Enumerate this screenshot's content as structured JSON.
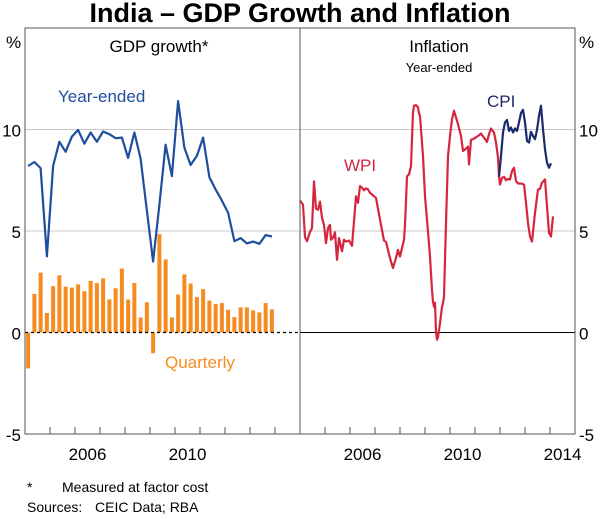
{
  "chart_data": {
    "type": "line",
    "title": "India – GDP Growth and Inflation",
    "unit_left": "%",
    "unit_right": "%",
    "ylim": [
      -5,
      15
    ],
    "yticks": [
      -5,
      0,
      5,
      10
    ],
    "ytick_labels": [
      "-5",
      "0",
      "5",
      "10"
    ],
    "xlim": [
      2004,
      2015
    ],
    "grid": true,
    "panels": [
      {
        "title": "GDP growth*",
        "subtitle": "",
        "xtick_labels": [
          {
            "year": 2006,
            "label": "2006"
          },
          {
            "year": 2010,
            "label": "2010"
          }
        ],
        "series": [
          {
            "name": "Year-ended",
            "type": "line",
            "color": "#1f4e9e",
            "label": "Year-ended",
            "frequency": "quarterly",
            "start": "2004Q1",
            "values": [
              8.2,
              8.4,
              8.1,
              3.75,
              8.2,
              9.4,
              8.9,
              9.65,
              9.98,
              9.3,
              9.85,
              9.4,
              9.9,
              9.77,
              9.57,
              9.6,
              8.6,
              9.85,
              8.56,
              6.0,
              3.5,
              6.3,
              9.25,
              7.7,
              11.4,
              9.1,
              8.25,
              8.7,
              9.6,
              7.65,
              7.05,
              6.5,
              5.9,
              4.5,
              4.65,
              4.39,
              4.48,
              4.37,
              4.8,
              4.73
            ]
          },
          {
            "name": "Quarterly",
            "type": "bar",
            "color": "#f68b1f",
            "label": "Quarterly",
            "frequency": "quarterly",
            "start": "2004Q1",
            "values": [
              -1.77,
              1.9,
              2.95,
              0.96,
              2.28,
              2.82,
              2.26,
              2.21,
              2.37,
              2.03,
              2.54,
              2.43,
              2.67,
              1.63,
              2.18,
              3.15,
              1.62,
              2.44,
              0.74,
              1.49,
              -1.02,
              4.84,
              3.6,
              0.74,
              1.87,
              2.86,
              2.41,
              1.75,
              2.14,
              1.57,
              1.4,
              1.45,
              1.12,
              0.76,
              1.24,
              1.24,
              1.09,
              0.99,
              1.45,
              1.14
            ]
          }
        ]
      },
      {
        "title": "Inflation",
        "subtitle": "Year-ended",
        "xtick_labels": [
          {
            "year": 2006,
            "label": "2006"
          },
          {
            "year": 2010,
            "label": "2010"
          },
          {
            "year": 2014,
            "label": "2014"
          }
        ],
        "series": [
          {
            "name": "WPI",
            "type": "line",
            "color": "#d5253f",
            "label": "WPI",
            "frequency": "monthly",
            "points": [
              [
                2004.0,
                6.5
              ],
              [
                2004.12,
                6.3
              ],
              [
                2004.2,
                4.7
              ],
              [
                2004.28,
                4.5
              ],
              [
                2004.4,
                4.95
              ],
              [
                2004.48,
                5.15
              ],
              [
                2004.56,
                7.45
              ],
              [
                2004.64,
                6.1
              ],
              [
                2004.72,
                6.05
              ],
              [
                2004.8,
                6.45
              ],
              [
                2004.88,
                5.65
              ],
              [
                2004.96,
                5.3
              ],
              [
                2005.04,
                4.4
              ],
              [
                2005.12,
                5.15
              ],
              [
                2005.2,
                5.3
              ],
              [
                2005.24,
                4.57
              ],
              [
                2005.32,
                4.67
              ],
              [
                2005.4,
                4.93
              ],
              [
                2005.48,
                3.58
              ],
              [
                2005.56,
                4.65
              ],
              [
                2005.68,
                4.0
              ],
              [
                2005.76,
                4.57
              ],
              [
                2005.84,
                4.48
              ],
              [
                2005.96,
                4.53
              ],
              [
                2006.08,
                4.27
              ],
              [
                2006.16,
                5.47
              ],
              [
                2006.24,
                6.71
              ],
              [
                2006.32,
                6.39
              ],
              [
                2006.4,
                7.21
              ],
              [
                2006.48,
                7.14
              ],
              [
                2006.56,
                7.0
              ],
              [
                2006.64,
                7.1
              ],
              [
                2006.72,
                7.05
              ],
              [
                2006.8,
                6.88
              ],
              [
                2006.88,
                6.8
              ],
              [
                2006.96,
                6.71
              ],
              [
                2007.04,
                6.63
              ],
              [
                2007.2,
                5.56
              ],
              [
                2007.36,
                4.52
              ],
              [
                2007.44,
                4.47
              ],
              [
                2007.6,
                3.66
              ],
              [
                2007.72,
                3.17
              ],
              [
                2007.84,
                3.68
              ],
              [
                2007.92,
                4.07
              ],
              [
                2008.0,
                3.74
              ],
              [
                2008.16,
                4.57
              ],
              [
                2008.2,
                5.3
              ],
              [
                2008.28,
                7.7
              ],
              [
                2008.36,
                7.79
              ],
              [
                2008.44,
                8.2
              ],
              [
                2008.52,
                10.84
              ],
              [
                2008.56,
                11.17
              ],
              [
                2008.64,
                11.2
              ],
              [
                2008.72,
                11.09
              ],
              [
                2008.76,
                10.8
              ],
              [
                2008.8,
                10.67
              ],
              [
                2008.92,
                8.69
              ],
              [
                2009.0,
                6.71
              ],
              [
                2009.08,
                5.56
              ],
              [
                2009.2,
                3.74
              ],
              [
                2009.28,
                2.09
              ],
              [
                2009.32,
                1.51
              ],
              [
                2009.36,
                1.27
              ],
              [
                2009.4,
                1.47
              ],
              [
                2009.44,
                0.03
              ],
              [
                2009.48,
                -0.35
              ],
              [
                2009.52,
                -0.22
              ],
              [
                2009.6,
                0.45
              ],
              [
                2009.68,
                1.27
              ],
              [
                2009.72,
                1.44
              ],
              [
                2009.76,
                1.76
              ],
              [
                2009.84,
                5.4
              ],
              [
                2009.92,
                8.69
              ],
              [
                2010.0,
                9.68
              ],
              [
                2010.08,
                10.5
              ],
              [
                2010.16,
                10.92
              ],
              [
                2010.24,
                10.59
              ],
              [
                2010.32,
                10.26
              ],
              [
                2010.44,
                9.68
              ],
              [
                2010.52,
                8.94
              ],
              [
                2010.64,
                9.06
              ],
              [
                2010.72,
                9.16
              ],
              [
                2010.76,
                8.28
              ],
              [
                2010.84,
                9.49
              ],
              [
                2010.96,
                9.55
              ],
              [
                2011.12,
                9.68
              ],
              [
                2011.24,
                9.8
              ],
              [
                2011.36,
                9.6
              ],
              [
                2011.48,
                9.39
              ],
              [
                2011.56,
                9.77
              ],
              [
                2011.64,
                10.05
              ],
              [
                2011.76,
                9.85
              ],
              [
                2011.84,
                9.36
              ],
              [
                2011.92,
                8.61
              ],
              [
                2011.96,
                7.7
              ],
              [
                2012.0,
                7.29
              ],
              [
                2012.08,
                7.62
              ],
              [
                2012.16,
                7.67
              ],
              [
                2012.24,
                7.5
              ],
              [
                2012.32,
                7.57
              ],
              [
                2012.4,
                7.54
              ],
              [
                2012.48,
                7.95
              ],
              [
                2012.56,
                8.12
              ],
              [
                2012.64,
                7.46
              ],
              [
                2012.72,
                7.34
              ],
              [
                2012.84,
                7.34
              ],
              [
                2012.96,
                7.29
              ],
              [
                2013.04,
                6.39
              ],
              [
                2013.12,
                5.4
              ],
              [
                2013.2,
                4.73
              ],
              [
                2013.28,
                4.48
              ],
              [
                2013.4,
                5.89
              ],
              [
                2013.52,
                7.05
              ],
              [
                2013.6,
                7.08
              ],
              [
                2013.68,
                7.38
              ],
              [
                2013.8,
                7.54
              ],
              [
                2013.88,
                6.22
              ],
              [
                2013.96,
                4.9
              ],
              [
                2014.04,
                4.73
              ],
              [
                2014.12,
                5.72
              ]
            ]
          },
          {
            "name": "CPI",
            "type": "line",
            "color": "#1b2a6b",
            "label": "CPI",
            "frequency": "monthly",
            "points": [
              [
                2011.96,
                7.67
              ],
              [
                2012.04,
                8.69
              ],
              [
                2012.12,
                9.85
              ],
              [
                2012.2,
                10.35
              ],
              [
                2012.28,
                10.47
              ],
              [
                2012.36,
                9.93
              ],
              [
                2012.44,
                10.1
              ],
              [
                2012.52,
                9.85
              ],
              [
                2012.6,
                10.05
              ],
              [
                2012.68,
                9.93
              ],
              [
                2012.76,
                10.35
              ],
              [
                2012.84,
                10.81
              ],
              [
                2012.92,
                10.97
              ],
              [
                2013.0,
                10.35
              ],
              [
                2013.08,
                9.44
              ],
              [
                2013.16,
                9.36
              ],
              [
                2013.24,
                9.88
              ],
              [
                2013.32,
                9.68
              ],
              [
                2013.4,
                9.52
              ],
              [
                2013.48,
                9.98
              ],
              [
                2013.56,
                10.67
              ],
              [
                2013.64,
                11.17
              ],
              [
                2013.72,
                10.02
              ],
              [
                2013.8,
                9.03
              ],
              [
                2013.88,
                8.37
              ],
              [
                2013.96,
                8.12
              ],
              [
                2014.04,
                8.33
              ]
            ]
          }
        ]
      }
    ],
    "footnotes": [
      {
        "marker": "*",
        "text": "Measured at factor cost"
      },
      {
        "marker": "Sources:",
        "text": "CEIC Data; RBA"
      }
    ]
  }
}
